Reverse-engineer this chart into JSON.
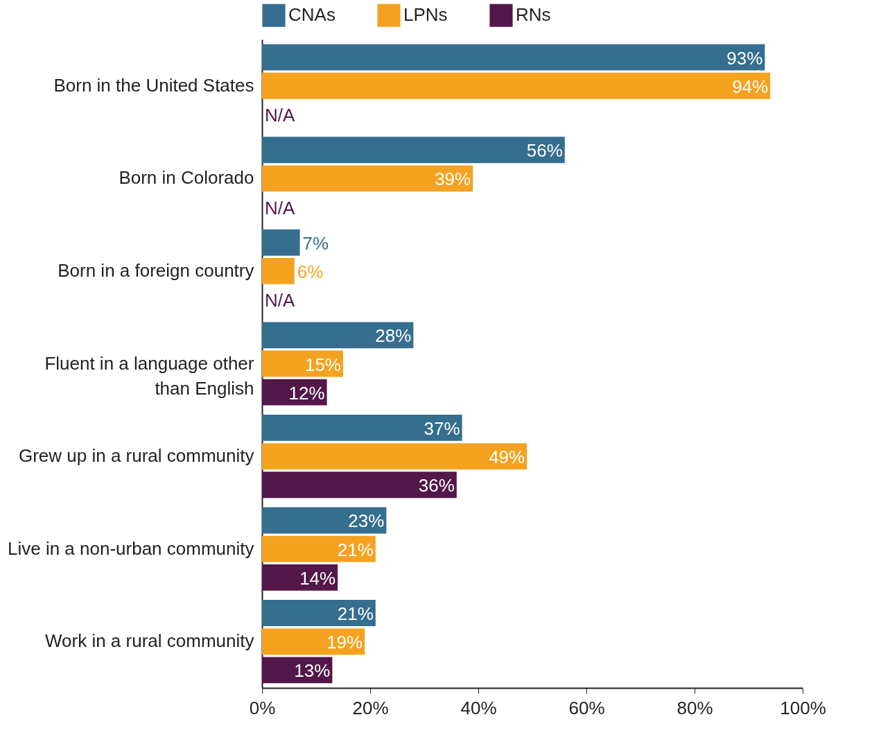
{
  "chart_data": {
    "type": "bar",
    "orientation": "horizontal",
    "categories": [
      "Born in the United States",
      "Born in Colorado",
      "Born in a foreign country",
      "Fluent in a language other than English",
      "Grew up in a rural community",
      "Live in a non-urban community",
      "Work in a rural community"
    ],
    "series": [
      {
        "name": "CNAs",
        "color": "#356e8f",
        "values": [
          93,
          56,
          7,
          28,
          37,
          23,
          21
        ],
        "value_labels": [
          "93%",
          "56%",
          "7%",
          "28%",
          "37%",
          "23%",
          "21%"
        ]
      },
      {
        "name": "LPNs",
        "color": "#f4a21f",
        "values": [
          94,
          39,
          6,
          15,
          49,
          21,
          19
        ],
        "value_labels": [
          "94%",
          "39%",
          "6%",
          "15%",
          "49%",
          "21%",
          "19%"
        ]
      },
      {
        "name": "RNs",
        "color": "#53174a",
        "values": [
          null,
          null,
          null,
          12,
          36,
          14,
          13
        ],
        "value_labels": [
          "N/A",
          "N/A",
          "N/A",
          "12%",
          "36%",
          "14%",
          "13%"
        ]
      }
    ],
    "xlim": [
      0,
      100
    ],
    "xticks": [
      {
        "value": 0,
        "label": "0%"
      },
      {
        "value": 20,
        "label": "20%"
      },
      {
        "value": 40,
        "label": "40%"
      },
      {
        "value": 60,
        "label": "60%"
      },
      {
        "value": 80,
        "label": "80%"
      },
      {
        "value": 100,
        "label": "100%"
      }
    ],
    "grid": false,
    "legend": "top"
  }
}
